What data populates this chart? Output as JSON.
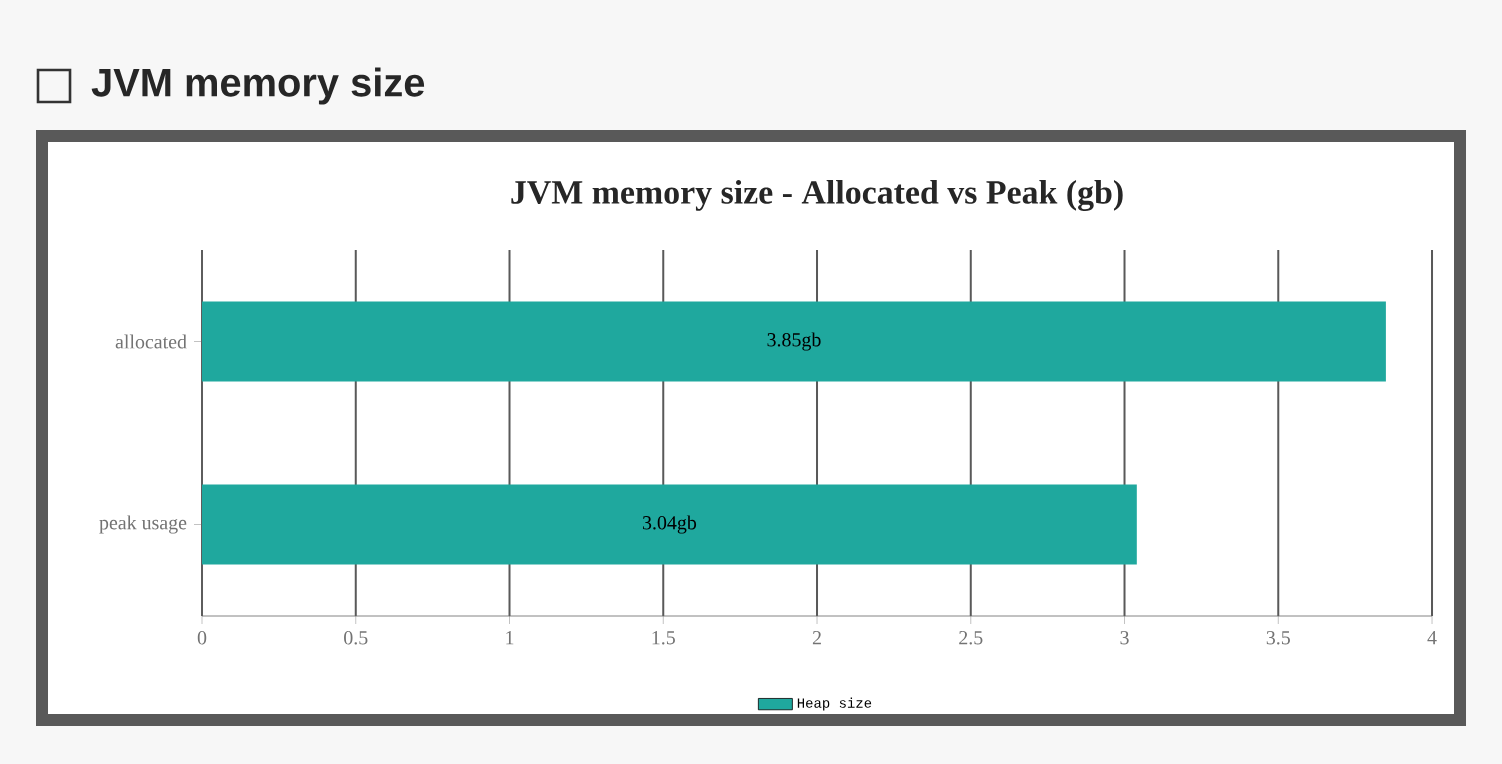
{
  "chart_data": {
    "type": "bar",
    "orientation": "horizontal",
    "title": "JVM memory size - Allocated vs Peak (gb)",
    "annotations": [
      "JVM memory size"
    ],
    "categories": [
      "allocated",
      "peak usage"
    ],
    "series": [
      {
        "name": "Heap size",
        "color": "#1fa89e",
        "values": [
          3.85,
          3.04
        ],
        "value_labels": [
          "3.85gb",
          "3.04gb"
        ]
      }
    ],
    "xlim": [
      0,
      4
    ],
    "xticks": [
      0,
      0.5,
      1,
      1.5,
      2,
      2.5,
      3,
      3.5,
      4
    ],
    "grid": "x",
    "legend": "bottom"
  }
}
